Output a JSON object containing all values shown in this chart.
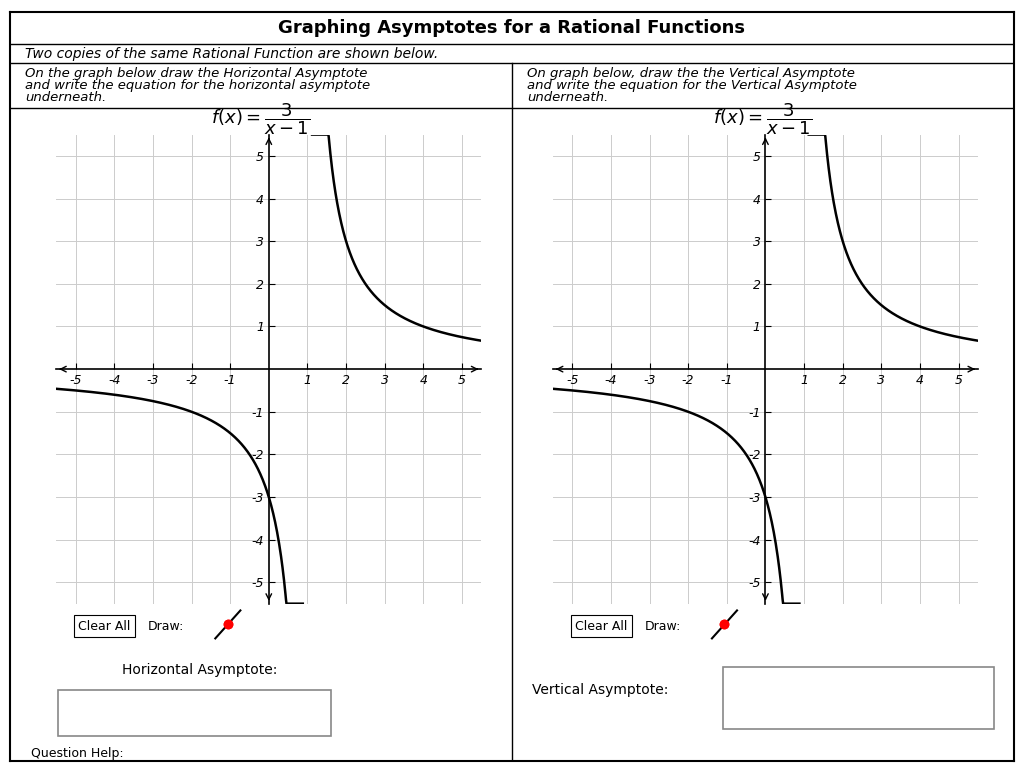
{
  "title": "Graphing Asymptotes for a Rational Functions",
  "subtitle": "Two copies of the same Rational Function are shown below.",
  "left_instr1": "On the graph below draw the Horizontal Asymptote",
  "left_instr2": "and write the equation for the horizontal asymptote",
  "left_instr3": "underneath.",
  "right_instr1": "On graph below, draw the the Vertical Asymptote",
  "right_instr2": "and write the equation for the Vertical Asymptote",
  "right_instr3": "underneath.",
  "xlim": [
    -5.5,
    5.5
  ],
  "ylim": [
    -5.5,
    5.5
  ],
  "xticks": [
    -5,
    -4,
    -3,
    -2,
    -1,
    1,
    2,
    3,
    4,
    5
  ],
  "yticks": [
    -5,
    -4,
    -3,
    -2,
    -1,
    1,
    2,
    3,
    4,
    5
  ],
  "bg_color": "#ffffff",
  "grid_color": "#cccccc",
  "curve_color": "#000000",
  "left_label": "Horizontal Asymptote:",
  "right_label": "Vertical Asymptote:",
  "draw_icon_color": "#c8d8e8",
  "title_fontsize": 13,
  "instr_fontsize": 9.5,
  "tick_fontsize": 9,
  "formula_fontsize": 13
}
